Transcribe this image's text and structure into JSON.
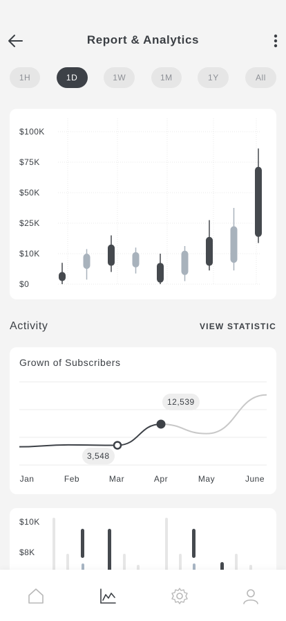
{
  "header": {
    "title": "Report & Analytics",
    "back_icon": "arrow-left-icon",
    "more_icon": "more-vertical-icon"
  },
  "tabs": [
    {
      "label": "1H",
      "active": false
    },
    {
      "label": "1D",
      "active": true
    },
    {
      "label": "1W",
      "active": false
    },
    {
      "label": "1M",
      "active": false
    },
    {
      "label": "1Y",
      "active": false
    },
    {
      "label": "All",
      "active": false
    }
  ],
  "colors": {
    "dark": "#45494e",
    "light": "#a8b2bc",
    "line_dark": "#3d4147",
    "line_light": "#c8c8c8",
    "accent_bar_blue": "#a8b6c4"
  },
  "chart_data": [
    {
      "type": "candlestick",
      "y_ticks": [
        "$100K",
        "$75K",
        "$50K",
        "$25K",
        "$10K",
        "$0"
      ],
      "grid": true,
      "candles": [
        {
          "open": 2,
          "close": 8,
          "high": 14,
          "low": 0,
          "color": "dark"
        },
        {
          "open": 10,
          "close": 20,
          "high": 23,
          "low": 3,
          "color": "light"
        },
        {
          "open": 12,
          "close": 26,
          "high": 32,
          "low": 8,
          "color": "dark"
        },
        {
          "open": 11,
          "close": 21,
          "high": 24,
          "low": 7,
          "color": "light"
        },
        {
          "open": 1,
          "close": 14,
          "high": 20,
          "low": 0,
          "color": "dark"
        },
        {
          "open": 6,
          "close": 22,
          "high": 25,
          "low": 2,
          "color": "light"
        },
        {
          "open": 12,
          "close": 31,
          "high": 42,
          "low": 9,
          "color": "dark"
        },
        {
          "open": 14,
          "close": 38,
          "high": 50,
          "low": 9,
          "color": "light"
        },
        {
          "open": 31,
          "close": 77,
          "high": 89,
          "low": 27,
          "color": "dark"
        }
      ]
    },
    {
      "type": "line",
      "title": "Grown of Subscribers",
      "categories": [
        "Jan",
        "Feb",
        "Mar",
        "Apr",
        "May",
        "June"
      ],
      "series": [
        {
          "values": [
            2900,
            3700,
            3548,
            12539,
            8500,
            25000
          ]
        }
      ],
      "annotations": [
        {
          "month": "Mar",
          "value": "3,548"
        },
        {
          "month": "Apr",
          "value": "12,539"
        }
      ],
      "grid": true
    },
    {
      "type": "bar",
      "y_ticks": [
        "$10K",
        "$8K"
      ]
    }
  ],
  "activity": {
    "title": "Activity",
    "link": "VIEW STATISTIC"
  },
  "nav": [
    {
      "icon": "home-icon"
    },
    {
      "icon": "chart-icon",
      "active": true
    },
    {
      "icon": "settings-icon"
    },
    {
      "icon": "user-icon"
    }
  ]
}
